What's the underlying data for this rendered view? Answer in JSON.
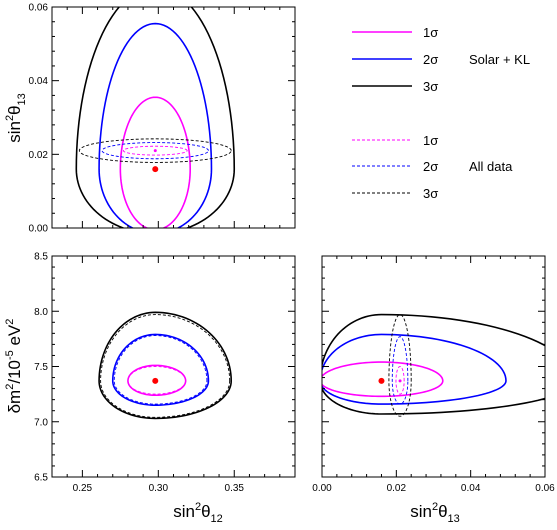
{
  "colors": {
    "one_sigma": "#ff00ff",
    "two_sigma": "#0000ff",
    "three_sigma": "#000000",
    "best_fit": "#ff0000"
  },
  "legend": {
    "solid": [
      {
        "label": "1σ",
        "color": "#ff00ff"
      },
      {
        "label": "2σ",
        "color": "#0000ff"
      },
      {
        "label": "3σ",
        "color": "#000000"
      }
    ],
    "solid_group_label": "Solar + KL",
    "dashed": [
      {
        "label": "1σ",
        "color": "#ff00ff"
      },
      {
        "label": "2σ",
        "color": "#0000ff"
      },
      {
        "label": "3σ",
        "color": "#000000"
      }
    ],
    "dashed_group_label": "All data"
  },
  "chart_data": [
    {
      "type": "scatter",
      "panel": "top-left",
      "xlim": [
        0.23,
        0.39
      ],
      "ylim": [
        0.0,
        0.06
      ],
      "xticks": [],
      "yticks": [
        "0.00",
        "0.02",
        "0.04",
        "0.06"
      ],
      "ylabel": {
        "main": "sin",
        "sup": "2",
        "main2": "θ",
        "sub": "13"
      },
      "best_fit": [
        {
          "name": "Solar + KL",
          "x": 0.298,
          "y": 0.016
        },
        {
          "name": "All data",
          "x": 0.298,
          "y": 0.021
        }
      ],
      "contours": [
        {
          "sigma": 1,
          "style": "solid",
          "cx": 0.298,
          "cy": 0.016,
          "rx": 0.023,
          "ry_up": 0.0195,
          "ry_down": 0.0165
        },
        {
          "sigma": 2,
          "style": "solid",
          "cx": 0.298,
          "cy": 0.016,
          "rx": 0.037,
          "ry_up": 0.0395,
          "ry_down": 0.0175
        },
        {
          "sigma": 3,
          "style": "solid",
          "cx": 0.298,
          "cy": 0.016,
          "rx": 0.052,
          "ry_up": 0.0495,
          "ry_down": 0.0175
        },
        {
          "sigma": 1,
          "style": "dashed",
          "cx": 0.298,
          "cy": 0.021,
          "rx": 0.021,
          "ry_up": 0.0012,
          "ry_down": 0.0012
        },
        {
          "sigma": 2,
          "style": "dashed",
          "cx": 0.298,
          "cy": 0.021,
          "rx": 0.035,
          "ry_up": 0.0022,
          "ry_down": 0.0022
        },
        {
          "sigma": 3,
          "style": "dashed",
          "cx": 0.298,
          "cy": 0.021,
          "rx": 0.05,
          "ry_up": 0.0032,
          "ry_down": 0.0032
        }
      ]
    },
    {
      "type": "scatter",
      "panel": "bottom-left",
      "xlim": [
        0.23,
        0.39
      ],
      "ylim": [
        6.5,
        8.5
      ],
      "xticks": [
        "0.25",
        "0.30",
        "0.35"
      ],
      "yticks": [
        "6.5",
        "7.0",
        "7.5",
        "8.0",
        "8.5"
      ],
      "xlabel": {
        "main": "sin",
        "sup": "2",
        "main2": "θ",
        "sub": "12"
      },
      "ylabel": {
        "main": "δm",
        "sup": "2",
        "main2": "/10",
        "sup2": "-5",
        "main3": " eV",
        "sup3": "2"
      },
      "best_fit": [
        {
          "name": "Solar + KL",
          "x": 0.298,
          "y": 7.37
        }
      ],
      "contours": [
        {
          "sigma": 1,
          "style": "solid",
          "cx": 0.298,
          "cy": 7.37,
          "rx_left": 0.018,
          "rx_right": 0.02,
          "ry_up": 0.14,
          "ry_down": 0.13
        },
        {
          "sigma": 2,
          "style": "solid",
          "cx": 0.298,
          "cy": 7.37,
          "rx_left": 0.028,
          "rx_right": 0.035,
          "ry_up": 0.42,
          "ry_down": 0.22
        },
        {
          "sigma": 3,
          "style": "solid",
          "cx": 0.298,
          "cy": 7.37,
          "rx_left": 0.037,
          "rx_right": 0.05,
          "ry_up": 0.62,
          "ry_down": 0.34
        },
        {
          "sigma": 1,
          "style": "dashed",
          "cx": 0.298,
          "cy": 7.37,
          "rx_left": 0.018,
          "rx_right": 0.02,
          "ry_up": 0.13,
          "ry_down": 0.12
        },
        {
          "sigma": 2,
          "style": "dashed",
          "cx": 0.298,
          "cy": 7.37,
          "rx_left": 0.027,
          "rx_right": 0.034,
          "ry_up": 0.41,
          "ry_down": 0.21
        },
        {
          "sigma": 3,
          "style": "dashed",
          "cx": 0.298,
          "cy": 7.37,
          "rx_left": 0.036,
          "rx_right": 0.049,
          "ry_up": 0.6,
          "ry_down": 0.33
        }
      ]
    },
    {
      "type": "scatter",
      "panel": "bottom-right",
      "xlim": [
        0.0,
        0.06
      ],
      "ylim": [
        6.5,
        8.5
      ],
      "xticks": [
        "0.00",
        "0.02",
        "0.04",
        "0.06"
      ],
      "yticks": [],
      "xlabel": {
        "main": "sin",
        "sup": "2",
        "main2": "θ",
        "sub": "13"
      },
      "best_fit": [
        {
          "name": "Solar + KL",
          "x": 0.016,
          "y": 7.37
        },
        {
          "name": "All data",
          "x": 0.021,
          "y": 7.37
        }
      ],
      "contours": [
        {
          "sigma": 1,
          "style": "solid",
          "cx": 0.016,
          "cy": 7.37,
          "rx_left": 0.0165,
          "rx_right": 0.0165,
          "ry_up": 0.17,
          "ry_down": 0.14
        },
        {
          "sigma": 2,
          "style": "solid",
          "cx": 0.016,
          "cy": 7.37,
          "rx_left": 0.0165,
          "rx_right": 0.0335,
          "ry_up": 0.42,
          "ry_down": 0.21
        },
        {
          "sigma": 3,
          "style": "solid",
          "cx": 0.016,
          "cy": 7.37,
          "rx_left": 0.0165,
          "rx_right": 0.052,
          "ry_up": 0.6,
          "ry_down": 0.3
        },
        {
          "sigma": 1,
          "style": "dashed",
          "cx": 0.021,
          "cy": 7.37,
          "rx_left": 0.0011,
          "rx_right": 0.0011,
          "ry_up": 0.13,
          "ry_down": 0.12
        },
        {
          "sigma": 2,
          "style": "dashed",
          "cx": 0.021,
          "cy": 7.37,
          "rx_left": 0.0021,
          "rx_right": 0.0021,
          "ry_up": 0.4,
          "ry_down": 0.21
        },
        {
          "sigma": 3,
          "style": "dashed",
          "cx": 0.021,
          "cy": 7.37,
          "rx_left": 0.003,
          "rx_right": 0.003,
          "ry_up": 0.6,
          "ry_down": 0.32
        }
      ]
    }
  ]
}
